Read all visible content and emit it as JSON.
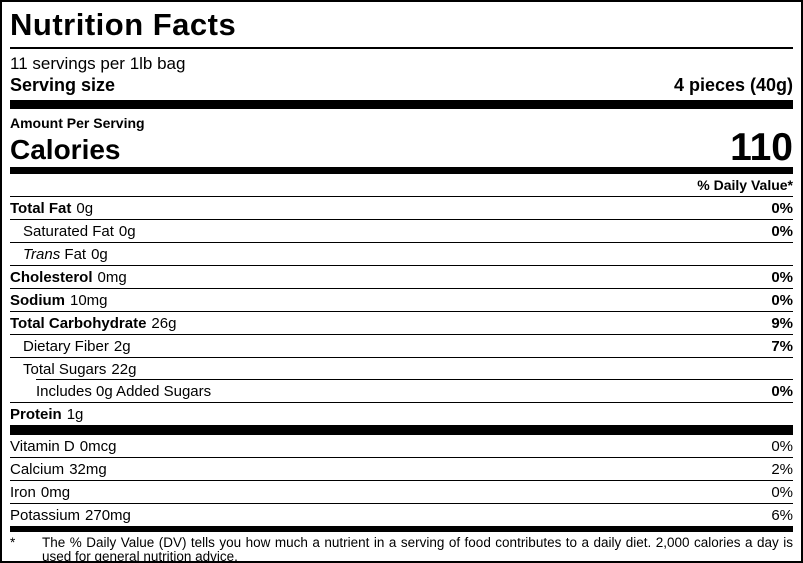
{
  "label": {
    "title": "Nutrition Facts",
    "servings_line": "11 servings per 1lb bag",
    "serving_size_label": "Serving size",
    "serving_size_value": "4 pieces (40g)",
    "amount_per_serving_label": "Amount Per Serving",
    "calories_label": "Calories",
    "calories_value": "110",
    "daily_value_header": "% Daily Value*",
    "nutrients": [
      {
        "name": "Total Fat",
        "amount": "0g",
        "dv": "0%",
        "bold": true,
        "indent": 0,
        "divider": "full"
      },
      {
        "name": "Saturated Fat",
        "amount": "0g",
        "dv": "0%",
        "bold": false,
        "indent": 1,
        "divider": "full"
      },
      {
        "name_italic": "Trans",
        "name": "Fat",
        "amount": "0g",
        "dv": "",
        "bold": false,
        "indent": 1,
        "divider": "full"
      },
      {
        "name": "Cholesterol",
        "amount": "0mg",
        "dv": "0%",
        "bold": true,
        "indent": 0,
        "divider": "full"
      },
      {
        "name": "Sodium",
        "amount": "10mg",
        "dv": "0%",
        "bold": true,
        "indent": 0,
        "divider": "full"
      },
      {
        "name": "Total Carbohydrate",
        "amount": "26g",
        "dv": "9%",
        "bold": true,
        "indent": 0,
        "divider": "full"
      },
      {
        "name": "Dietary Fiber",
        "amount": "2g",
        "dv": "7%",
        "bold": false,
        "indent": 1,
        "divider": "full"
      },
      {
        "name": "Total Sugars",
        "amount": "22g",
        "dv": "",
        "bold": false,
        "indent": 1,
        "divider": "indented"
      },
      {
        "name": "Includes 0g Added Sugars",
        "amount": "",
        "dv": "0%",
        "bold": false,
        "indent": 2,
        "divider": "full"
      },
      {
        "name": "Protein",
        "amount": "1g",
        "dv": "",
        "bold": true,
        "indent": 0,
        "divider": "none"
      }
    ],
    "vitamins": [
      {
        "name": "Vitamin D",
        "amount": "0mcg",
        "dv": "0%",
        "bold": false,
        "indent": 0,
        "divider": "full"
      },
      {
        "name": "Calcium",
        "amount": "32mg",
        "dv": "2%",
        "bold": false,
        "indent": 0,
        "divider": "full"
      },
      {
        "name": "Iron",
        "amount": "0mg",
        "dv": "0%",
        "bold": false,
        "indent": 0,
        "divider": "full"
      },
      {
        "name": "Potassium",
        "amount": "270mg",
        "dv": "6%",
        "bold": false,
        "indent": 0,
        "divider": "none"
      }
    ],
    "footnote_marker": "*",
    "footnote_text": "The % Daily Value (DV) tells you how much a nutrient in a serving of food contributes to a daily diet. 2,000 calories a day is used for general nutrition advice."
  },
  "colors": {
    "text": "#000000",
    "background": "#ffffff",
    "border": "#000000"
  }
}
